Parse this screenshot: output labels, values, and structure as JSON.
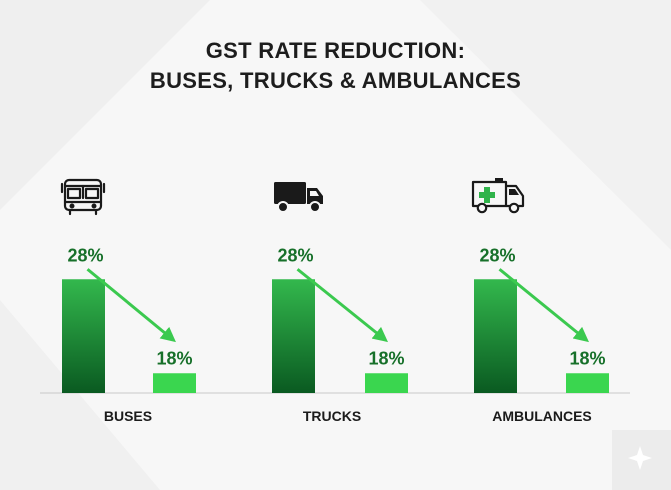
{
  "title": {
    "line1": "GST RATE REDUCTION:",
    "line2": "BUSES, TRUCKS & AMBULANCES"
  },
  "icons": [
    "bus-icon",
    "truck-icon",
    "ambulance-icon"
  ],
  "colors": {
    "bar_before_top": "#2fb34a",
    "bar_before_bottom": "#0b5d22",
    "bar_after": "#3ad64f",
    "arrow": "#3bc94f",
    "label_green": "#17702a",
    "baseline": "#c9c9c9"
  },
  "chart_data": {
    "type": "bar",
    "title": "GST RATE REDUCTION: BUSES, TRUCKS & AMBULANCES",
    "categories": [
      "BUSES",
      "TRUCKS",
      "AMBULANCES"
    ],
    "series": [
      {
        "values": [
          28,
          28,
          28
        ],
        "labels": [
          "28%",
          "28%",
          "28%"
        ]
      },
      {
        "values": [
          18,
          18,
          18
        ],
        "labels": [
          "18%",
          "18%",
          "18%"
        ]
      }
    ],
    "ylim": [
      0,
      32
    ],
    "grid": false,
    "legend": "none"
  }
}
